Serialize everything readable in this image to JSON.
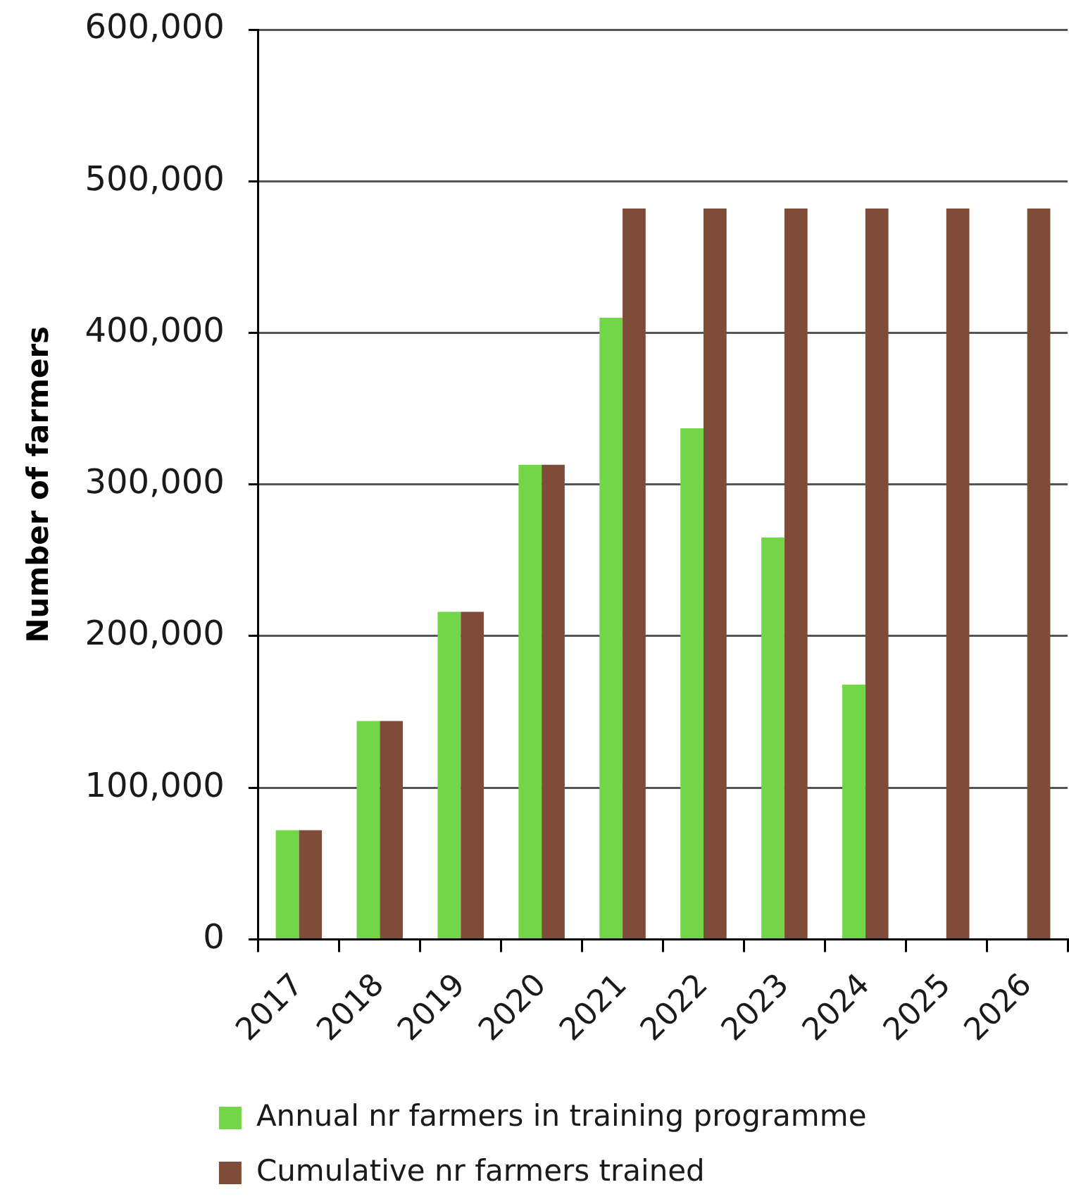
{
  "chart_data": {
    "type": "bar",
    "categories": [
      "2017",
      "2018",
      "2019",
      "2020",
      "2021",
      "2022",
      "2023",
      "2024",
      "2025",
      "2026"
    ],
    "ylabel": "Number of farmers",
    "series": [
      {
        "name": "Annual nr farmers in training programme",
        "color": "#72d648",
        "values": [
          72000,
          144000,
          216000,
          313000,
          410000,
          337000,
          265000,
          168000,
          null,
          null
        ]
      },
      {
        "name": "Cumulative nr farmers trained",
        "color": "#804c3a",
        "values": [
          72000,
          144000,
          216000,
          313000,
          482000,
          482000,
          482000,
          482000,
          482000,
          482000
        ]
      }
    ],
    "ylim": [
      0,
      600000
    ],
    "yticks": [
      0,
      {
        "value": 100000,
        "label": "100,000"
      },
      {
        "value": 200000,
        "label": "200,000"
      },
      {
        "value": 300000,
        "label": "300,000"
      },
      {
        "value": 400000,
        "label": "400,000"
      },
      {
        "value": 500000,
        "label": "500,000"
      },
      {
        "value": 600000,
        "label": "600,000"
      }
    ],
    "grid": "y",
    "legend": "bottom"
  }
}
